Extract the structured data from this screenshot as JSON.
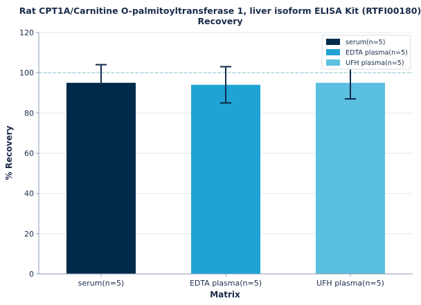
{
  "chart_data": {
    "type": "bar",
    "title": "Rat CPT1A/Carnitine O-palmitoyltransferase 1, liver isoform ELISA Kit (RTFI00180)",
    "subtitle": "Recovery",
    "xlabel": "Matrix",
    "ylabel": "% Recovery",
    "categories": [
      "serum(n=5)",
      "EDTA plasma(n=5)",
      "UFH plasma(n=5)"
    ],
    "values": [
      95,
      94,
      95
    ],
    "error_low": [
      95,
      85,
      87
    ],
    "error_high": [
      104,
      103,
      102
    ],
    "colors": [
      "#002a4a",
      "#1fa3d4",
      "#5bbfe0"
    ],
    "ylim": [
      0,
      120
    ],
    "yticks": [
      "0",
      "20",
      "40",
      "60",
      "80",
      "100",
      "120"
    ],
    "reference_line": 100,
    "reference_color": "#7fc4cc",
    "grid": true,
    "legend": {
      "placement": "top-right",
      "entries": [
        "serum(n=5)",
        "EDTA plasma(n=5)",
        "UFH plasma(n=5)"
      ]
    }
  }
}
